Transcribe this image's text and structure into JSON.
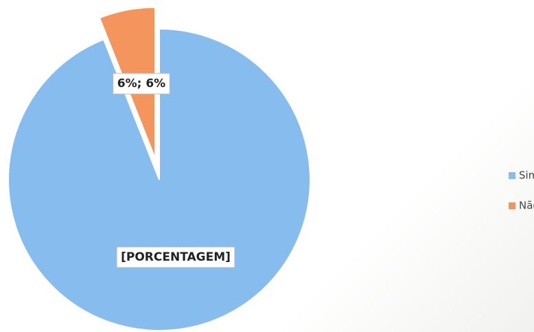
{
  "chart_data": {
    "type": "pie",
    "categories": [
      "Sim",
      "Não"
    ],
    "values": [
      94,
      6
    ],
    "value_labels": [
      "[PORCENTAGEM]",
      "6%; 6%"
    ],
    "colors": [
      "#86bdee",
      "#f3955c"
    ],
    "legend": "right"
  }
}
